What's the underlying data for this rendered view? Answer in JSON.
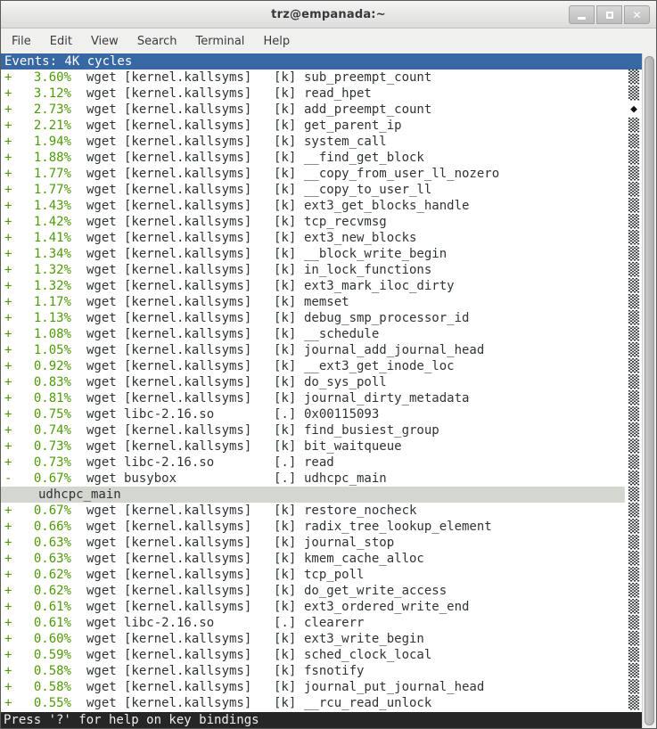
{
  "window": {
    "title": "trz@empanada:~",
    "controls": {
      "minimize": "minimize",
      "maximize": "maximize",
      "close": "close"
    }
  },
  "menu": {
    "items": [
      "File",
      "Edit",
      "View",
      "Search",
      "Terminal",
      "Help"
    ]
  },
  "perf": {
    "header": "Events: 4K cycles",
    "status_bar": "Press '?' for help on key bindings",
    "scroll_track_char": "▒",
    "scroll_thumb_char": "◆",
    "columns": [
      "expand",
      "overhead",
      "command",
      "shared_object",
      "privilege",
      "symbol"
    ],
    "rows": [
      {
        "expand": "+",
        "percent": "3.60%",
        "command": "wget",
        "dso": "[kernel.kallsyms]",
        "priv": "[k]",
        "symbol": "sub_preempt_count",
        "marker": "shade"
      },
      {
        "expand": "+",
        "percent": "3.12%",
        "command": "wget",
        "dso": "[kernel.kallsyms]",
        "priv": "[k]",
        "symbol": "read_hpet",
        "marker": "shade"
      },
      {
        "expand": "+",
        "percent": "2.73%",
        "command": "wget",
        "dso": "[kernel.kallsyms]",
        "priv": "[k]",
        "symbol": "add_preempt_count",
        "marker": "diamond"
      },
      {
        "expand": "+",
        "percent": "2.21%",
        "command": "wget",
        "dso": "[kernel.kallsyms]",
        "priv": "[k]",
        "symbol": "get_parent_ip",
        "marker": "shade"
      },
      {
        "expand": "+",
        "percent": "1.94%",
        "command": "wget",
        "dso": "[kernel.kallsyms]",
        "priv": "[k]",
        "symbol": "system_call",
        "marker": "shade"
      },
      {
        "expand": "+",
        "percent": "1.88%",
        "command": "wget",
        "dso": "[kernel.kallsyms]",
        "priv": "[k]",
        "symbol": "__find_get_block",
        "marker": "shade"
      },
      {
        "expand": "+",
        "percent": "1.77%",
        "command": "wget",
        "dso": "[kernel.kallsyms]",
        "priv": "[k]",
        "symbol": "__copy_from_user_ll_nozero",
        "marker": "shade"
      },
      {
        "expand": "+",
        "percent": "1.77%",
        "command": "wget",
        "dso": "[kernel.kallsyms]",
        "priv": "[k]",
        "symbol": "__copy_to_user_ll",
        "marker": "shade"
      },
      {
        "expand": "+",
        "percent": "1.43%",
        "command": "wget",
        "dso": "[kernel.kallsyms]",
        "priv": "[k]",
        "symbol": "ext3_get_blocks_handle",
        "marker": "shade"
      },
      {
        "expand": "+",
        "percent": "1.42%",
        "command": "wget",
        "dso": "[kernel.kallsyms]",
        "priv": "[k]",
        "symbol": "tcp_recvmsg",
        "marker": "shade"
      },
      {
        "expand": "+",
        "percent": "1.41%",
        "command": "wget",
        "dso": "[kernel.kallsyms]",
        "priv": "[k]",
        "symbol": "ext3_new_blocks",
        "marker": "shade"
      },
      {
        "expand": "+",
        "percent": "1.34%",
        "command": "wget",
        "dso": "[kernel.kallsyms]",
        "priv": "[k]",
        "symbol": "__block_write_begin",
        "marker": "shade"
      },
      {
        "expand": "+",
        "percent": "1.32%",
        "command": "wget",
        "dso": "[kernel.kallsyms]",
        "priv": "[k]",
        "symbol": "in_lock_functions",
        "marker": "shade"
      },
      {
        "expand": "+",
        "percent": "1.32%",
        "command": "wget",
        "dso": "[kernel.kallsyms]",
        "priv": "[k]",
        "symbol": "ext3_mark_iloc_dirty",
        "marker": "shade"
      },
      {
        "expand": "+",
        "percent": "1.17%",
        "command": "wget",
        "dso": "[kernel.kallsyms]",
        "priv": "[k]",
        "symbol": "memset",
        "marker": "shade"
      },
      {
        "expand": "+",
        "percent": "1.13%",
        "command": "wget",
        "dso": "[kernel.kallsyms]",
        "priv": "[k]",
        "symbol": "debug_smp_processor_id",
        "marker": "shade"
      },
      {
        "expand": "+",
        "percent": "1.08%",
        "command": "wget",
        "dso": "[kernel.kallsyms]",
        "priv": "[k]",
        "symbol": "__schedule",
        "marker": "shade"
      },
      {
        "expand": "+",
        "percent": "1.05%",
        "command": "wget",
        "dso": "[kernel.kallsyms]",
        "priv": "[k]",
        "symbol": "journal_add_journal_head",
        "marker": "shade"
      },
      {
        "expand": "+",
        "percent": "0.92%",
        "command": "wget",
        "dso": "[kernel.kallsyms]",
        "priv": "[k]",
        "symbol": "__ext3_get_inode_loc",
        "marker": "shade"
      },
      {
        "expand": "+",
        "percent": "0.83%",
        "command": "wget",
        "dso": "[kernel.kallsyms]",
        "priv": "[k]",
        "symbol": "do_sys_poll",
        "marker": "shade"
      },
      {
        "expand": "+",
        "percent": "0.81%",
        "command": "wget",
        "dso": "[kernel.kallsyms]",
        "priv": "[k]",
        "symbol": "journal_dirty_metadata",
        "marker": "shade"
      },
      {
        "expand": "+",
        "percent": "0.75%",
        "command": "wget",
        "dso": "libc-2.16.so",
        "priv": "[.]",
        "symbol": "0x00115093",
        "marker": "shade"
      },
      {
        "expand": "+",
        "percent": "0.74%",
        "command": "wget",
        "dso": "[kernel.kallsyms]",
        "priv": "[k]",
        "symbol": "find_busiest_group",
        "marker": "shade"
      },
      {
        "expand": "+",
        "percent": "0.73%",
        "command": "wget",
        "dso": "[kernel.kallsyms]",
        "priv": "[k]",
        "symbol": "bit_waitqueue",
        "marker": "shade"
      },
      {
        "expand": "+",
        "percent": "0.73%",
        "command": "wget",
        "dso": "libc-2.16.so",
        "priv": "[.]",
        "symbol": "read",
        "marker": "shade"
      },
      {
        "expand": "-",
        "percent": "0.67%",
        "command": "wget",
        "dso": "busybox",
        "priv": "[.]",
        "symbol": "udhcpc_main",
        "marker": "shade"
      },
      {
        "child": true,
        "selected": true,
        "symbol": "udhcpc_main",
        "marker": "shade"
      },
      {
        "expand": "+",
        "percent": "0.67%",
        "command": "wget",
        "dso": "[kernel.kallsyms]",
        "priv": "[k]",
        "symbol": "restore_nocheck",
        "marker": "shade"
      },
      {
        "expand": "+",
        "percent": "0.66%",
        "command": "wget",
        "dso": "[kernel.kallsyms]",
        "priv": "[k]",
        "symbol": "radix_tree_lookup_element",
        "marker": "shade"
      },
      {
        "expand": "+",
        "percent": "0.63%",
        "command": "wget",
        "dso": "[kernel.kallsyms]",
        "priv": "[k]",
        "symbol": "journal_stop",
        "marker": "shade"
      },
      {
        "expand": "+",
        "percent": "0.63%",
        "command": "wget",
        "dso": "[kernel.kallsyms]",
        "priv": "[k]",
        "symbol": "kmem_cache_alloc",
        "marker": "shade"
      },
      {
        "expand": "+",
        "percent": "0.62%",
        "command": "wget",
        "dso": "[kernel.kallsyms]",
        "priv": "[k]",
        "symbol": "tcp_poll",
        "marker": "shade"
      },
      {
        "expand": "+",
        "percent": "0.62%",
        "command": "wget",
        "dso": "[kernel.kallsyms]",
        "priv": "[k]",
        "symbol": "do_get_write_access",
        "marker": "shade"
      },
      {
        "expand": "+",
        "percent": "0.61%",
        "command": "wget",
        "dso": "[kernel.kallsyms]",
        "priv": "[k]",
        "symbol": "ext3_ordered_write_end",
        "marker": "shade"
      },
      {
        "expand": "+",
        "percent": "0.61%",
        "command": "wget",
        "dso": "libc-2.16.so",
        "priv": "[.]",
        "symbol": "clearerr",
        "marker": "shade"
      },
      {
        "expand": "+",
        "percent": "0.60%",
        "command": "wget",
        "dso": "[kernel.kallsyms]",
        "priv": "[k]",
        "symbol": "ext3_write_begin",
        "marker": "shade"
      },
      {
        "expand": "+",
        "percent": "0.59%",
        "command": "wget",
        "dso": "[kernel.kallsyms]",
        "priv": "[k]",
        "symbol": "sched_clock_local",
        "marker": "shade"
      },
      {
        "expand": "+",
        "percent": "0.58%",
        "command": "wget",
        "dso": "[kernel.kallsyms]",
        "priv": "[k]",
        "symbol": "fsnotify",
        "marker": "shade"
      },
      {
        "expand": "+",
        "percent": "0.58%",
        "command": "wget",
        "dso": "[kernel.kallsyms]",
        "priv": "[k]",
        "symbol": "journal_put_journal_head",
        "marker": "shade"
      },
      {
        "expand": "+",
        "percent": "0.55%",
        "command": "wget",
        "dso": "[kernel.kallsyms]",
        "priv": "[k]",
        "symbol": "__rcu_read_unlock",
        "marker": "shade"
      }
    ]
  },
  "colors": {
    "header_bg": "#3868a4",
    "header_fg": "#ffffff",
    "overhead_green": "#4e9a06",
    "text": "#2e3436",
    "selected_row_bg": "#d3d7cf",
    "status_bg": "#262626",
    "status_fg": "#eeeeec",
    "terminal_bg": "#ffffff"
  }
}
